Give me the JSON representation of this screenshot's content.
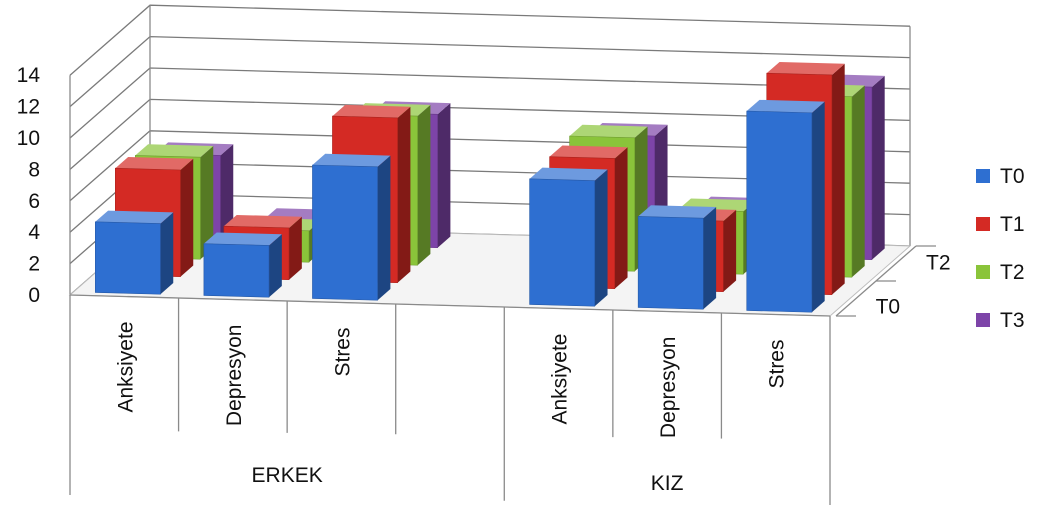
{
  "chart_data": {
    "type": "bar",
    "subtype": "3d-clustered-column",
    "groups": [
      {
        "label": "ERKEK",
        "categories": [
          "Anksiyete",
          "Depresyon",
          "Stres",
          ""
        ]
      },
      {
        "label": "KIZ",
        "categories": [
          "Anksiyete",
          "Depresyon",
          "Stres"
        ]
      }
    ],
    "series": [
      {
        "name": "T0",
        "color": "#2e6fd1",
        "values": [
          4.5,
          3.3,
          8.5,
          8.0,
          5.8,
          12.7
        ]
      },
      {
        "name": "T1",
        "color": "#d42a24",
        "values": [
          6.8,
          3.3,
          10.5,
          8.3,
          4.5,
          14.0
        ]
      },
      {
        "name": "T2",
        "color": "#8ac43a",
        "values": [
          6.5,
          2.0,
          9.5,
          8.5,
          4.0,
          11.5
        ]
      },
      {
        "name": "T3",
        "color": "#7d44a8",
        "values": [
          5.5,
          1.5,
          8.5,
          7.5,
          3.0,
          11.0
        ]
      }
    ],
    "depth_axis_labels": [
      "T0",
      "T2"
    ],
    "ylim": [
      0,
      14
    ],
    "yticks": [
      0,
      2,
      4,
      6,
      8,
      10,
      12,
      14
    ],
    "grid": true,
    "legend_position": "right"
  }
}
